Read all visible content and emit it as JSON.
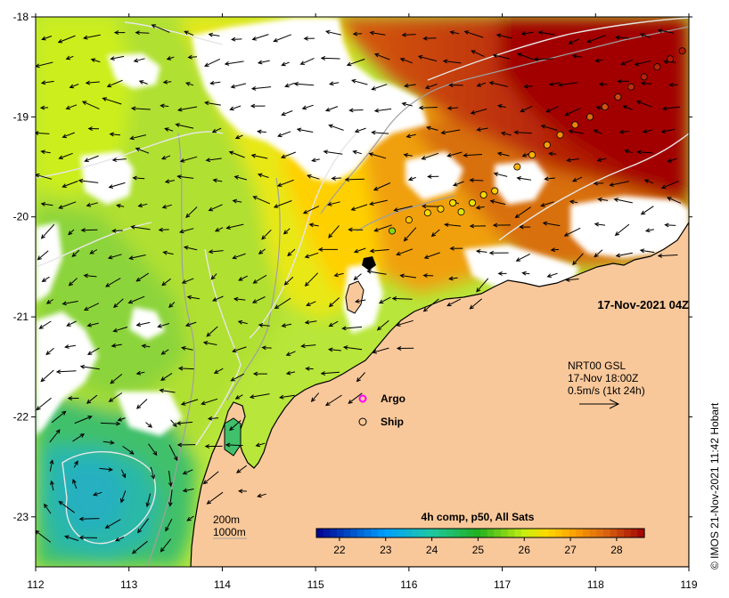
{
  "map": {
    "lon_range": [
      112,
      119
    ],
    "lat_range": [
      -23.5,
      -18
    ],
    "lon_ticks": [
      {
        "value": 112,
        "label": "112"
      },
      {
        "value": 113,
        "label": "113"
      },
      {
        "value": 114,
        "label": "114"
      },
      {
        "value": 115,
        "label": "115"
      },
      {
        "value": 116,
        "label": "116"
      },
      {
        "value": 117,
        "label": "117"
      },
      {
        "value": 118,
        "label": "118"
      },
      {
        "value": 119,
        "label": "119"
      }
    ],
    "lat_ticks": [
      {
        "value": -18,
        "label": "-18"
      },
      {
        "value": -19,
        "label": "-19"
      },
      {
        "value": -20,
        "label": "-20"
      },
      {
        "value": -21,
        "label": "-21"
      },
      {
        "value": -22,
        "label": "-22"
      },
      {
        "value": -23,
        "label": "-23"
      }
    ],
    "land_color": "#f9c89a",
    "no_data_color": "#ffffff",
    "timestamp": "17-Nov-2021 04Z"
  },
  "colorbar": {
    "title": "4h comp, p50, All Sats",
    "range": [
      21.5,
      28.6
    ],
    "ticks": [
      {
        "value": 22,
        "label": "22"
      },
      {
        "value": 23,
        "label": "23"
      },
      {
        "value": 24,
        "label": "24"
      },
      {
        "value": 25,
        "label": "25"
      },
      {
        "value": 26,
        "label": "26"
      },
      {
        "value": 27,
        "label": "27"
      },
      {
        "value": 28,
        "label": "28"
      }
    ],
    "stops": [
      {
        "value": 21.5,
        "color": "#00008f"
      },
      {
        "value": 23.0,
        "color": "#00a0ff"
      },
      {
        "value": 24.0,
        "color": "#20c8a0"
      },
      {
        "value": 25.0,
        "color": "#20b020"
      },
      {
        "value": 26.0,
        "color": "#c8ee10"
      },
      {
        "value": 26.5,
        "color": "#ffd800"
      },
      {
        "value": 27.0,
        "color": "#ffa800"
      },
      {
        "value": 27.8,
        "color": "#d86010"
      },
      {
        "value": 28.6,
        "color": "#a00000"
      }
    ]
  },
  "currents": {
    "product": "NRT00 GSL",
    "time": "17-Nov 18:00Z",
    "scale": "0.5m/s (1kt 24h)"
  },
  "legend": {
    "argo_label": "Argo",
    "ship_label": "Ship",
    "argo_color": "#ff00ff"
  },
  "isobaths": {
    "shallow_label": "200m",
    "deep_label": "1000m"
  },
  "credit": "©  IMOS 21-Nov-2021 11:42 Hobart",
  "ship_track": [
    {
      "lon": 116.8,
      "lat": -19.78,
      "sst": 26.5
    },
    {
      "lon": 116.68,
      "lat": -19.86,
      "sst": 26.3
    },
    {
      "lon": 116.56,
      "lat": -19.95,
      "sst": 26.2
    },
    {
      "lon": 116.34,
      "lat": -19.92,
      "sst": 26.6
    },
    {
      "lon": 116.2,
      "lat": -19.96,
      "sst": 26.5
    },
    {
      "lon": 116.0,
      "lat": -20.03,
      "sst": 26.7
    },
    {
      "lon": 115.82,
      "lat": -20.14,
      "sst": 25.6
    },
    {
      "lon": 116.47,
      "lat": -19.86,
      "sst": 26.4
    },
    {
      "lon": 116.92,
      "lat": -19.74,
      "sst": 26.6
    },
    {
      "lon": 117.16,
      "lat": -19.5,
      "sst": 26.9
    },
    {
      "lon": 117.32,
      "lat": -19.38,
      "sst": 26.9
    },
    {
      "lon": 117.48,
      "lat": -19.28,
      "sst": 27.1
    },
    {
      "lon": 117.62,
      "lat": -19.18,
      "sst": 27.3
    },
    {
      "lon": 117.78,
      "lat": -19.08,
      "sst": 27.4
    },
    {
      "lon": 117.94,
      "lat": -19.0,
      "sst": 27.7
    },
    {
      "lon": 118.1,
      "lat": -18.9,
      "sst": 27.9
    },
    {
      "lon": 118.24,
      "lat": -18.8,
      "sst": 28.0
    },
    {
      "lon": 118.38,
      "lat": -18.7,
      "sst": 28.2
    },
    {
      "lon": 118.52,
      "lat": -18.6,
      "sst": 28.3
    },
    {
      "lon": 118.66,
      "lat": -18.5,
      "sst": 28.3
    },
    {
      "lon": 118.8,
      "lat": -18.42,
      "sst": 28.4
    },
    {
      "lon": 118.93,
      "lat": -18.34,
      "sst": 28.4
    }
  ]
}
